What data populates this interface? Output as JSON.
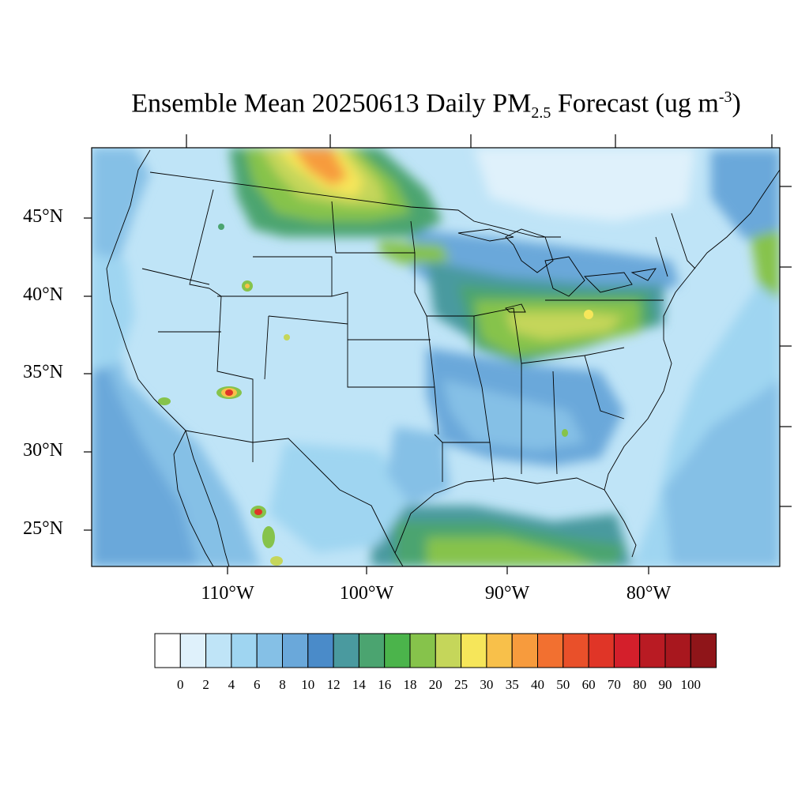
{
  "title": {
    "main": "Ensemble Mean 20250613 Daily PM",
    "sub": "2.5",
    "mid": " Forecast (ug m",
    "sup": "-3",
    "end": ")"
  },
  "lat_labels": [
    "45°N",
    "40°N",
    "35°N",
    "30°N",
    "25°N"
  ],
  "lon_labels": [
    "110°W",
    "100°W",
    "90°W",
    "80°W"
  ],
  "colorbar": {
    "labels": [
      "0",
      "2",
      "4",
      "6",
      "8",
      "10",
      "12",
      "14",
      "16",
      "18",
      "20",
      "25",
      "30",
      "35",
      "40",
      "50",
      "60",
      "70",
      "80",
      "90",
      "100"
    ],
    "colors": [
      "#ffffff",
      "#dff1fb",
      "#bfe4f7",
      "#9fd5f1",
      "#85c0e6",
      "#6aa8da",
      "#4a8bc9",
      "#4a9a9f",
      "#4ba470",
      "#4bb44b",
      "#86c34b",
      "#c5d65a",
      "#f6e65a",
      "#f8c04a",
      "#f79b3d",
      "#f27030",
      "#e9502a",
      "#e03527",
      "#d41f2b",
      "#b91b23",
      "#a8171e",
      "#8f1519"
    ]
  }
}
